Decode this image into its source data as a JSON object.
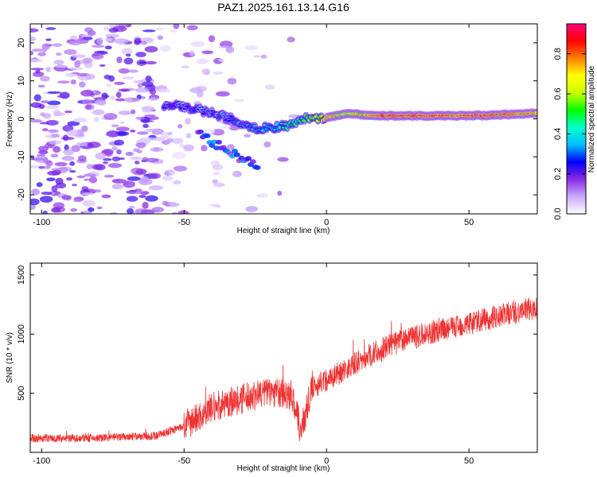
{
  "chart_data": [
    {
      "type": "heatmap",
      "title": "PAZ1.2025.161.13.14.G16",
      "xlabel": "Height of straight line (km)",
      "ylabel": "Frequency (Hz)",
      "xlim": [
        -104,
        74
      ],
      "ylim": [
        -25,
        25
      ],
      "xticks": [
        -100,
        -50,
        0,
        50
      ],
      "yticks": [
        -20,
        -10,
        0,
        10,
        20
      ],
      "colorbar": {
        "label": "Normalized spectral amplitude",
        "range": [
          0,
          0.95
        ],
        "ticks": [
          "0.0",
          "0.2",
          "0.4",
          "0.6",
          "0.8"
        ],
        "colors": [
          "#ffffff",
          "#c9a9ff",
          "#8a2be2",
          "#0000ff",
          "#00bfff",
          "#00ffcc",
          "#00ff00",
          "#ccff00",
          "#ffff00",
          "#ff8000",
          "#ff0000",
          "#ff0080"
        ]
      },
      "ridge": [
        {
          "x": -55,
          "f": 3.5,
          "a": 0.25
        },
        {
          "x": -45,
          "f": 2.5,
          "a": 0.3
        },
        {
          "x": -38,
          "f": 1.0,
          "a": 0.3
        },
        {
          "x": -30,
          "f": -1.0,
          "a": 0.35
        },
        {
          "x": -24,
          "f": -2.5,
          "a": 0.4
        },
        {
          "x": -18,
          "f": -2.2,
          "a": 0.45
        },
        {
          "x": -12,
          "f": -1.5,
          "a": 0.5
        },
        {
          "x": -8,
          "f": 0.2,
          "a": 0.55
        },
        {
          "x": 0,
          "f": 0.3,
          "a": 0.8
        },
        {
          "x": 8,
          "f": 1.5,
          "a": 0.7
        },
        {
          "x": 12,
          "f": 1.0,
          "a": 0.75
        },
        {
          "x": 20,
          "f": 0.8,
          "a": 0.9
        },
        {
          "x": 35,
          "f": 0.8,
          "a": 0.9
        },
        {
          "x": 45,
          "f": 0.8,
          "a": 0.85
        },
        {
          "x": 55,
          "f": 0.9,
          "a": 0.9
        },
        {
          "x": 65,
          "f": 1.2,
          "a": 0.85
        },
        {
          "x": 74,
          "f": 1.5,
          "a": 0.8
        }
      ]
    },
    {
      "type": "line",
      "xlabel": "Height of straight line (km)",
      "ylabel": "SNR (10 * v/v)",
      "xlim": [
        -104,
        74
      ],
      "ylim": [
        0,
        1600
      ],
      "xticks": [
        -100,
        -50,
        0,
        50
      ],
      "yticks": [
        500,
        1000,
        1500
      ],
      "color": "#ee3333",
      "trend": [
        {
          "x": -104,
          "y": 120
        },
        {
          "x": -80,
          "y": 120
        },
        {
          "x": -60,
          "y": 140
        },
        {
          "x": -50,
          "y": 220
        },
        {
          "x": -40,
          "y": 380
        },
        {
          "x": -30,
          "y": 450
        },
        {
          "x": -20,
          "y": 520
        },
        {
          "x": -12,
          "y": 480
        },
        {
          "x": -9,
          "y": 180
        },
        {
          "x": -5,
          "y": 550
        },
        {
          "x": 5,
          "y": 680
        },
        {
          "x": 15,
          "y": 820
        },
        {
          "x": 25,
          "y": 930
        },
        {
          "x": 35,
          "y": 1000
        },
        {
          "x": 45,
          "y": 1060
        },
        {
          "x": 55,
          "y": 1120
        },
        {
          "x": 65,
          "y": 1180
        },
        {
          "x": 74,
          "y": 1220
        }
      ]
    }
  ]
}
